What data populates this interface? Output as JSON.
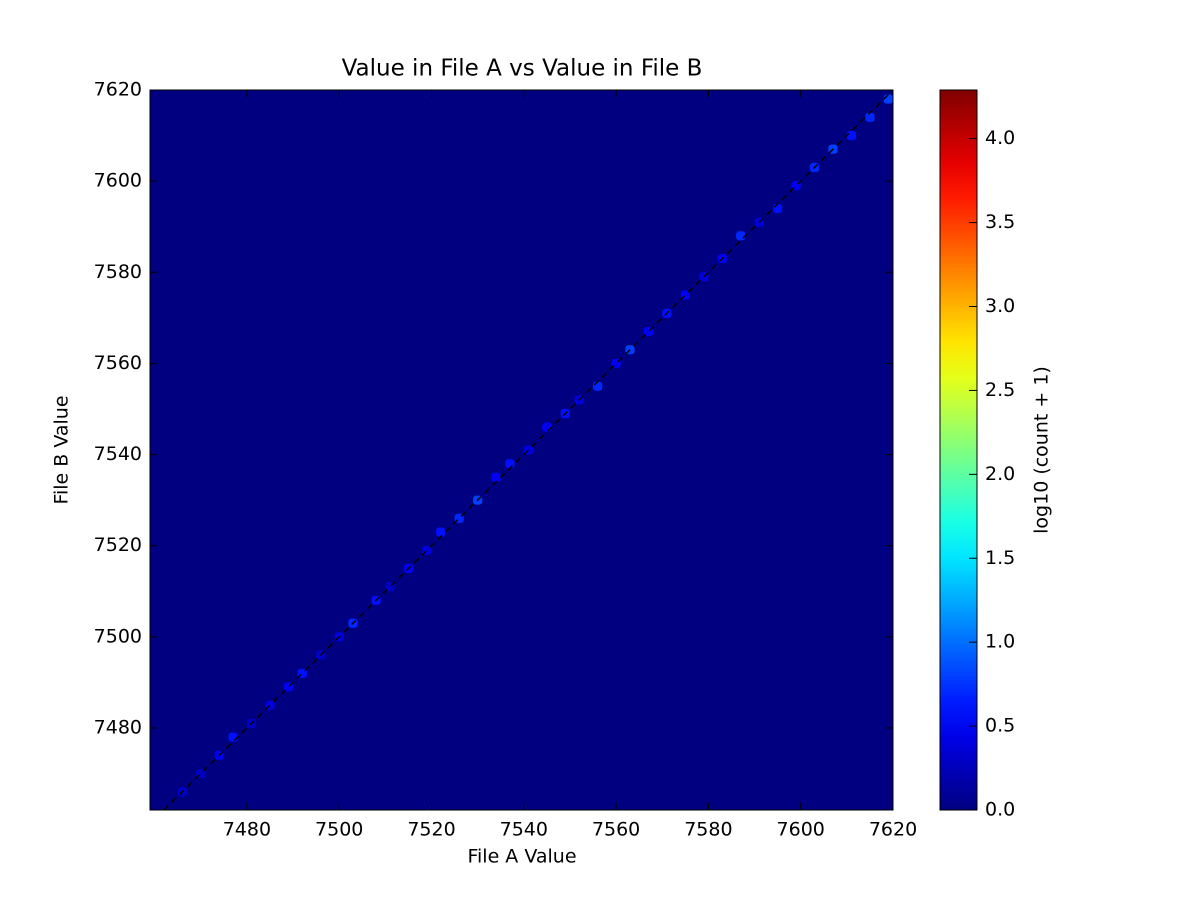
{
  "chart_data": {
    "type": "heatmap",
    "title": "Value in File A vs Value in File B",
    "x_label": "File A Value",
    "y_label": "File B Value",
    "colorbar_label": "log10 (count + 1)",
    "colormap": "jet",
    "xlim": [
      7459,
      7620
    ],
    "ylim": [
      7462,
      7620
    ],
    "xticks": [
      7480,
      7500,
      7520,
      7540,
      7560,
      7580,
      7600,
      7620
    ],
    "yticks": [
      7480,
      7500,
      7520,
      7540,
      7560,
      7580,
      7600,
      7620
    ],
    "clim": [
      0,
      4.29
    ],
    "cticks": [
      {
        "value": 0,
        "label": "0.0"
      },
      0.5,
      {
        "value": 1,
        "label": "1.0"
      },
      1.5,
      {
        "value": 2,
        "label": "2.0"
      },
      2.5,
      {
        "value": 3,
        "label": "3.0"
      },
      3.5,
      {
        "value": 4,
        "label": "4.0"
      }
    ],
    "x": [
      7466,
      7470,
      7474,
      7477,
      7481,
      7485,
      7489,
      7492,
      7496,
      7500,
      7503,
      7508,
      7511,
      7515,
      7519,
      7522,
      7526,
      7530,
      7534,
      7537,
      7541,
      7545,
      7549,
      7552,
      7556,
      7560,
      7563,
      7567,
      7571,
      7575,
      7579,
      7583,
      7587,
      7591,
      7595,
      7599,
      7603,
      7607,
      7611,
      7615,
      7619
    ],
    "y": [
      7466,
      7470,
      7474,
      7478,
      7481,
      7485,
      7489,
      7492,
      7496,
      7500,
      7503,
      7508,
      7511,
      7515,
      7519,
      7523,
      7526,
      7530,
      7535,
      7538,
      7541,
      7546,
      7549,
      7552,
      7555,
      7560,
      7563,
      7567,
      7571,
      7575,
      7579,
      7583,
      7588,
      7591,
      7594,
      7599,
      7603,
      7607,
      7610,
      7614,
      7618
    ],
    "values": [
      0.3,
      0.3,
      0.5,
      0.6,
      0.3,
      0.4,
      0.5,
      0.6,
      0.3,
      0.4,
      0.7,
      0.6,
      0.3,
      0.5,
      0.4,
      0.6,
      0.7,
      0.8,
      0.5,
      0.6,
      0.4,
      0.5,
      0.6,
      0.4,
      0.7,
      0.5,
      0.8,
      0.5,
      0.6,
      0.5,
      0.4,
      0.5,
      0.7,
      0.4,
      0.6,
      0.5,
      0.7,
      0.8,
      0.6,
      0.7,
      0.8
    ]
  }
}
